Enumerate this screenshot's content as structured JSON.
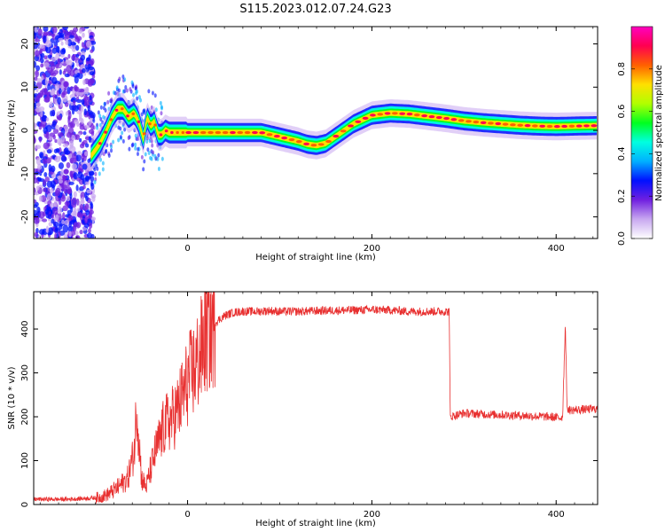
{
  "title": "S115.2023.012.07.24.G23",
  "chart_data": [
    {
      "type": "heatmap",
      "xlabel": "Height of straight line (km)",
      "ylabel": "Frequency (Hz)",
      "xlim": [
        -167,
        445
      ],
      "ylim": [
        -25,
        24
      ],
      "xticks": [
        0,
        200,
        400
      ],
      "yticks": [
        -20,
        -10,
        0,
        10,
        20
      ],
      "colorbar": {
        "label": "Normalized spectral amplitude",
        "range": [
          0,
          1
        ],
        "ticks": [
          0.0,
          0.2,
          0.4,
          0.6,
          0.8
        ],
        "colors": [
          "#ffffff",
          "#c8a8f0",
          "#7020e0",
          "#0010ff",
          "#00b0ff",
          "#00ffe0",
          "#00ff20",
          "#b0ff00",
          "#ffe000",
          "#ff6000",
          "#ff0050",
          "#ff00c0"
        ]
      },
      "ridge": {
        "x": [
          -105,
          -95,
          -88,
          -82,
          -76,
          -70,
          -64,
          -58,
          -53,
          -48,
          -44,
          -40,
          -36,
          -32,
          -28,
          -24,
          -20,
          -10,
          0,
          20,
          40,
          60,
          80,
          100,
          120,
          130,
          140,
          150,
          160,
          170,
          180,
          190,
          200,
          220,
          240,
          260,
          280,
          300,
          320,
          340,
          360,
          380,
          400,
          420,
          445
        ],
        "y": [
          -6,
          -3,
          0,
          3,
          5,
          5,
          3,
          4,
          2,
          -2,
          3,
          1,
          2,
          -1,
          -1,
          0,
          -0.5,
          -0.5,
          -0.5,
          -0.5,
          -0.5,
          -0.5,
          -0.5,
          -1.5,
          -2.5,
          -3.2,
          -3.5,
          -3,
          -1.5,
          0,
          1.5,
          2.5,
          3.5,
          4,
          3.8,
          3.3,
          2.8,
          2.2,
          1.8,
          1.5,
          1.2,
          1,
          0.9,
          1,
          1.1
        ]
      }
    },
    {
      "type": "line",
      "xlabel": "Height of straight line (km)",
      "ylabel": "SNR (10 * v/v)",
      "xlim": [
        -167,
        445
      ],
      "ylim": [
        0,
        485
      ],
      "xticks": [
        0,
        200,
        400
      ],
      "yticks": [
        0,
        100,
        200,
        300,
        400
      ],
      "line_color": "#e83030",
      "series": [
        {
          "x": [
            -167,
            -130,
            -110,
            -95,
            -85,
            -75,
            -65,
            -58,
            -55,
            -50,
            -45,
            -40,
            -35,
            -30,
            -25,
            -20,
            -15,
            -10,
            -5,
            0,
            5,
            10,
            15,
            20,
            25,
            30,
            40,
            50,
            60,
            75,
            90,
            95,
            100,
            120,
            150,
            180,
            200,
            220,
            240,
            260,
            275,
            284,
            285,
            300,
            330,
            360,
            390,
            405,
            407,
            410,
            412,
            413,
            415,
            445
          ],
          "y": [
            12,
            12,
            14,
            16,
            25,
            40,
            60,
            120,
            230,
            60,
            40,
            80,
            120,
            150,
            180,
            190,
            200,
            220,
            250,
            280,
            300,
            320,
            350,
            390,
            400,
            415,
            430,
            438,
            440,
            440,
            442,
            440,
            440,
            440,
            442,
            443,
            444,
            443,
            440,
            440,
            440,
            440,
            200,
            208,
            205,
            203,
            200,
            198,
            200,
            415,
            205,
            220,
            215,
            218
          ]
        }
      ]
    }
  ]
}
